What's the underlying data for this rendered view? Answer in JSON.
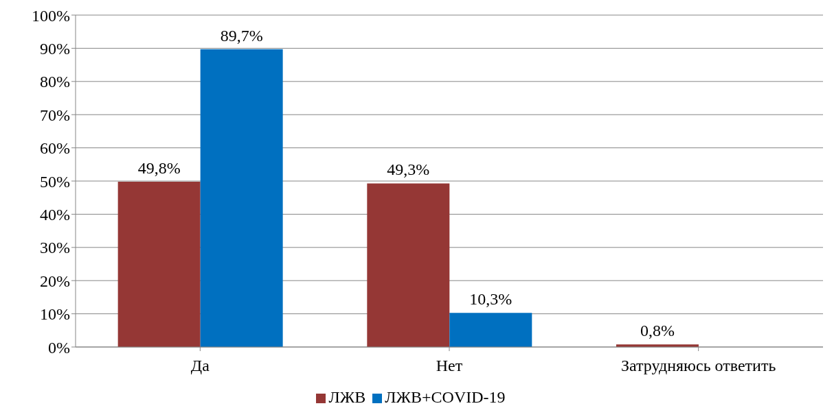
{
  "chart_data": {
    "type": "bar",
    "categories": [
      "Да",
      "Нет",
      "Затрудняюсь ответить"
    ],
    "series": [
      {
        "name": "ЛЖВ",
        "color": "#953735",
        "values": [
          49.8,
          49.3,
          0.8
        ],
        "value_labels": [
          "49,8%",
          "49,3%",
          "0,8%"
        ]
      },
      {
        "name": "ЛЖВ+COVID-19",
        "color": "#0070c0",
        "values": [
          89.7,
          10.3,
          null
        ],
        "value_labels": [
          "89,7%",
          "10,3%",
          null
        ]
      }
    ],
    "ylim": [
      0,
      100
    ],
    "yticks": [
      {
        "value": 0,
        "label": "0%"
      },
      {
        "value": 10,
        "label": "10%"
      },
      {
        "value": 20,
        "label": "20%"
      },
      {
        "value": 30,
        "label": "30%"
      },
      {
        "value": 40,
        "label": "40%"
      },
      {
        "value": 50,
        "label": "50%"
      },
      {
        "value": 60,
        "label": "60%"
      },
      {
        "value": 70,
        "label": "70%"
      },
      {
        "value": 80,
        "label": "80%"
      },
      {
        "value": 90,
        "label": "90%"
      },
      {
        "value": 100,
        "label": "100%"
      }
    ],
    "grid": "y",
    "legend": "bottom"
  }
}
